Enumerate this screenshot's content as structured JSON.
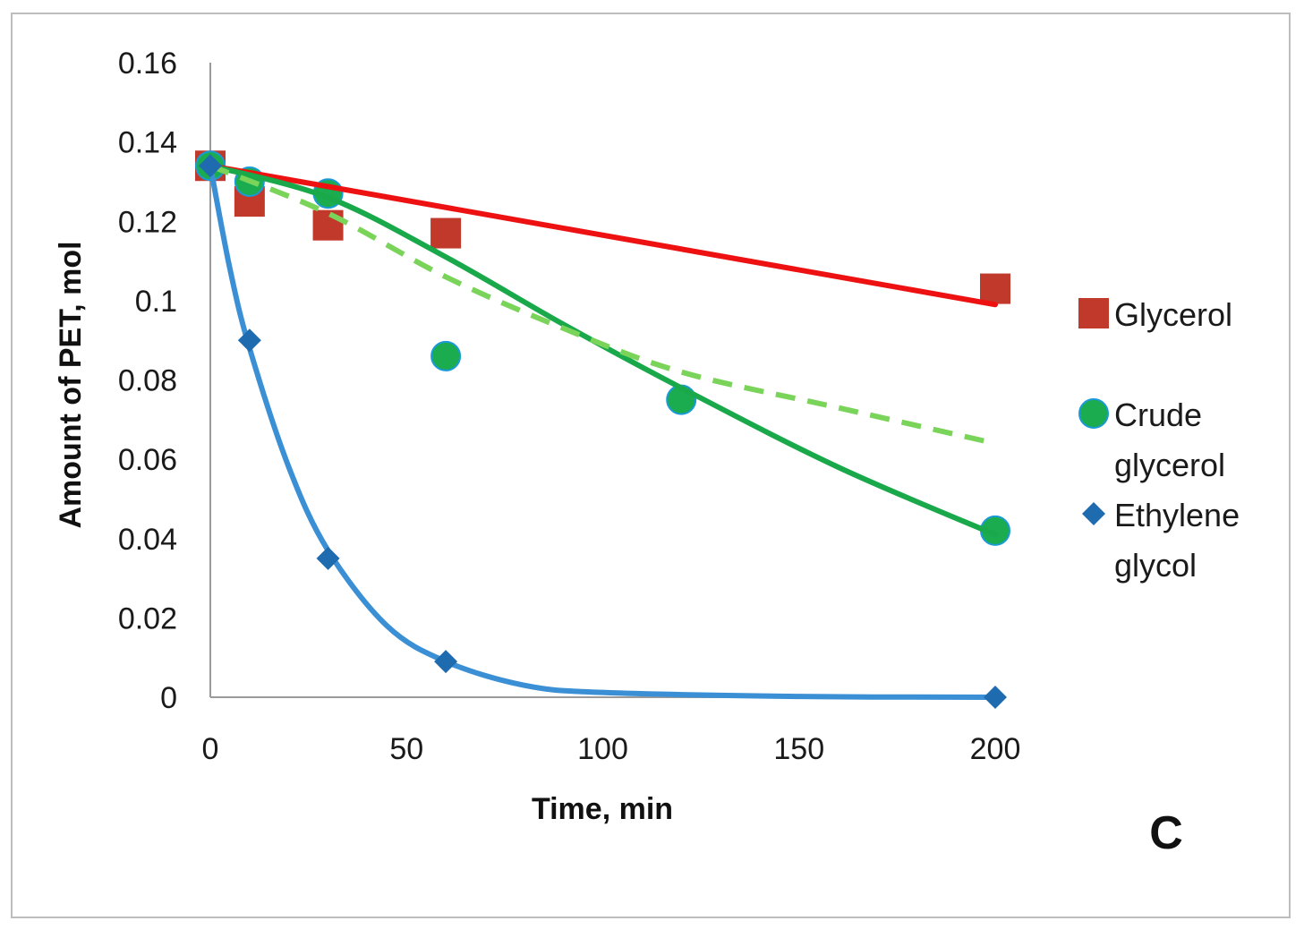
{
  "chart_data": {
    "type": "scatter",
    "xlabel": "Time, min",
    "ylabel": "Amount of PET, mol",
    "panel_label": "C",
    "xlim": [
      0,
      200
    ],
    "ylim": [
      0,
      0.16
    ],
    "x_ticks": [
      "0",
      "50",
      "100",
      "150",
      "200"
    ],
    "y_ticks": [
      "0",
      "0.02",
      "0.04",
      "0.06",
      "0.08",
      "0.1",
      "0.12",
      "0.14",
      "0.16"
    ],
    "grid": false,
    "legend_position": "right",
    "series": [
      {
        "name": "Glycerol",
        "legend_label_lines": [
          "Glycerol"
        ],
        "marker": "square",
        "color": "#c0392b",
        "points": [
          [
            0,
            0.134
          ],
          [
            10,
            0.125
          ],
          [
            30,
            0.119
          ],
          [
            60,
            0.117
          ],
          [
            200,
            0.103
          ]
        ],
        "fit": {
          "style": "solid",
          "color": "#ee1111",
          "points": [
            [
              0,
              0.134
            ],
            [
              200,
              0.099
            ]
          ]
        }
      },
      {
        "name": "Crude glycerol",
        "legend_label_lines": [
          "Crude",
          "glycerol"
        ],
        "marker": "circle",
        "color": "#1aac4e",
        "points": [
          [
            0,
            0.134
          ],
          [
            10,
            0.13
          ],
          [
            30,
            0.127
          ],
          [
            60,
            0.086
          ],
          [
            120,
            0.075
          ],
          [
            200,
            0.042
          ]
        ],
        "fit": {
          "style": "solid",
          "color": "#19a84a",
          "points": [
            [
              0,
              0.134
            ],
            [
              30,
              0.126
            ],
            [
              60,
              0.111
            ],
            [
              90,
              0.094
            ],
            [
              120,
              0.078
            ],
            [
              160,
              0.058
            ],
            [
              200,
              0.041
            ]
          ]
        }
      },
      {
        "name": "Crude glycerol fit (dashed)",
        "legend_label_lines": [],
        "marker": "none",
        "color": "#7bd45a",
        "points": [],
        "fit": {
          "style": "dashed",
          "color": "#7bd45a",
          "points": [
            [
              0,
              0.134
            ],
            [
              30,
              0.122
            ],
            [
              60,
              0.106
            ],
            [
              90,
              0.093
            ],
            [
              120,
              0.082
            ],
            [
              160,
              0.073
            ],
            [
              200,
              0.064
            ]
          ]
        }
      },
      {
        "name": "Ethylene glycol",
        "legend_label_lines": [
          "Ethylene",
          "glycol"
        ],
        "marker": "diamond",
        "color": "#1f6bb0",
        "points": [
          [
            0,
            0.134
          ],
          [
            10,
            0.09
          ],
          [
            30,
            0.035
          ],
          [
            60,
            0.009
          ],
          [
            200,
            0.0
          ]
        ],
        "fit": {
          "style": "solid",
          "color": "#3b8fd4",
          "points": [
            [
              0,
              0.134
            ],
            [
              5,
              0.108
            ],
            [
              10,
              0.088
            ],
            [
              20,
              0.058
            ],
            [
              30,
              0.037
            ],
            [
              45,
              0.018
            ],
            [
              60,
              0.009
            ],
            [
              80,
              0.003
            ],
            [
              100,
              0.0012
            ],
            [
              150,
              0.0002
            ],
            [
              200,
              0.0
            ]
          ]
        }
      }
    ]
  }
}
